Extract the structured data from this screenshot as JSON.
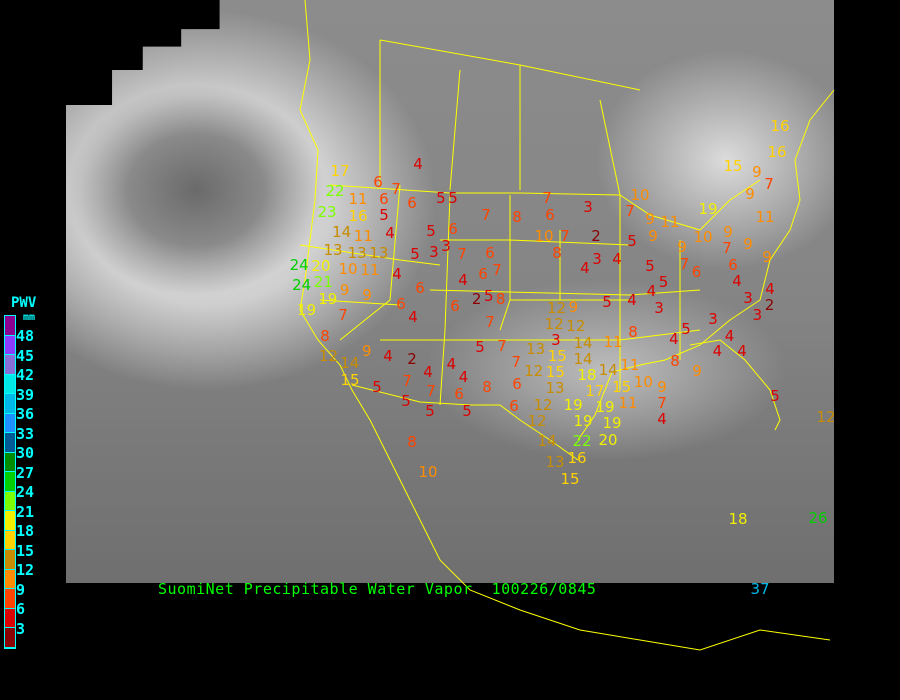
{
  "title": "SuomiNet Precipitable Water Vapor  100226/0845",
  "legend": {
    "title": "PWV",
    "unit": "mm",
    "ticks": [
      "48",
      "45",
      "42",
      "39",
      "36",
      "33",
      "30",
      "27",
      "24",
      "21",
      "18",
      "15",
      "12",
      "9",
      "6",
      "3"
    ],
    "band_colors": [
      "#8b0090",
      "#8c3cff",
      "#8870d8",
      "#00e8e8",
      "#00b8e8",
      "#1e90ff",
      "#005a96",
      "#008c00",
      "#00d000",
      "#7cff00",
      "#f0f000",
      "#ffd200",
      "#c88c00",
      "#ff8c00",
      "#ff4400",
      "#dd0000",
      "#8b0000"
    ]
  },
  "value_colors": {
    "lt3": "#8b0000",
    "3-5": "#dd0000",
    "6-8": "#ff4400",
    "9-11": "#ff8c00",
    "12-14": "#c88c00",
    "15-17": "#ffd200",
    "18-20": "#f0f000",
    "21-23": "#7cff00",
    "24-29": "#00d000",
    "30-36": "#00a0e8",
    "37+": "#00b8e8"
  },
  "border_color": "#ffff00",
  "stations": [
    4,
    6,
    7,
    5,
    6,
    6,
    5,
    17,
    22,
    23,
    11,
    16,
    14,
    4,
    5,
    6,
    3,
    5,
    3,
    7,
    6,
    11,
    13,
    13,
    13,
    10,
    11,
    20,
    24,
    24,
    21,
    19,
    19,
    9,
    9,
    7,
    4,
    6,
    6,
    4,
    6,
    7,
    5,
    2,
    6,
    8,
    7,
    5,
    4,
    7,
    8,
    7,
    6,
    3,
    10,
    7,
    8,
    2,
    3,
    4,
    4,
    5,
    9,
    9,
    11,
    10,
    7,
    19,
    10,
    9,
    7,
    9,
    9,
    6,
    4,
    9,
    7,
    6,
    5,
    5,
    4,
    3,
    4,
    5,
    9,
    12,
    15,
    16,
    16,
    9,
    7,
    9,
    11,
    3,
    4,
    2,
    3,
    3,
    8,
    5,
    4,
    4,
    4,
    4,
    8,
    9,
    11,
    12,
    12,
    3,
    14,
    14,
    15,
    18,
    14,
    11,
    10,
    9,
    7,
    4,
    15,
    11,
    17,
    19,
    19,
    19,
    19,
    20,
    22,
    16,
    13,
    15,
    14,
    5,
    12,
    8,
    12,
    9,
    14,
    15,
    4,
    2,
    4,
    7,
    7,
    5,
    5,
    5,
    4,
    4,
    6,
    5,
    8,
    5,
    7,
    7,
    6,
    6,
    12,
    15,
    13,
    13,
    12,
    12,
    8,
    10,
    18,
    26,
    37
  ]
}
